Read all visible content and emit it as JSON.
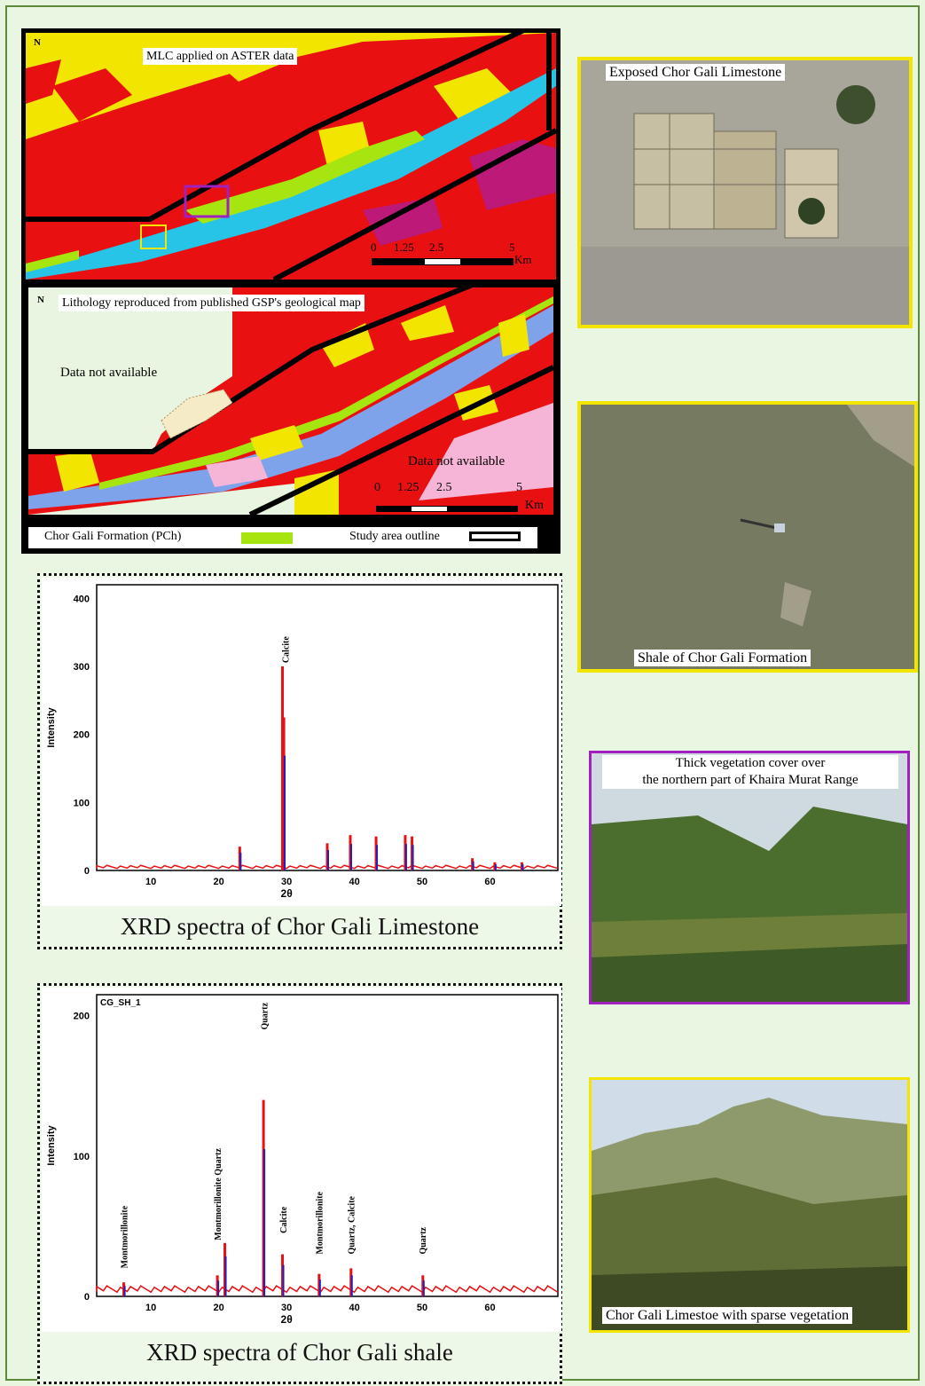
{
  "maps": {
    "top_title": "MLC applied on ASTER data",
    "bottom_title": "Lithology reproduced from published GSP's geological map",
    "north_label": "N",
    "na_left": "Data not available",
    "na_right": "Data not available",
    "scale_top": [
      "0",
      "1.25",
      "2.5",
      "5"
    ],
    "scale_bottom": [
      "0",
      "1.25",
      "2.5",
      "5"
    ],
    "scale_unit": "Km",
    "legend_formation": "Chor Gali Formation (PCh)",
    "legend_outline": "Study area outline"
  },
  "photos": {
    "p1": "Exposed Chor Gali Limestone",
    "p2": "Shale of Chor Gali Formation",
    "p3_line1": "Thick vegetation cover over",
    "p3_line2": "the northern part of Khaira Murat Range",
    "p4": "Chor Gali Limestoe with sparse vegetation"
  },
  "xrd1": {
    "caption": "XRD spectra of Chor Gali Limestone",
    "ylabel": "Intensity",
    "xlabel": "2θ",
    "yticks": [
      "0",
      "100",
      "200",
      "300",
      "400"
    ],
    "xticks": [
      "10",
      "20",
      "30",
      "40",
      "50",
      "60"
    ],
    "peak_label": "Calcite"
  },
  "xrd2": {
    "caption": "XRD spectra of Chor Gali shale",
    "ylabel": "Intensity",
    "xlabel": "2θ",
    "header": "CG_SH_1",
    "yticks": [
      "0",
      "100",
      "200"
    ],
    "xticks": [
      "10",
      "20",
      "30",
      "40",
      "50",
      "60"
    ],
    "labels": [
      "Montmorillonite",
      "Montmorillonite Quartz",
      "Quartz",
      "Calcite",
      "Montmorillonite",
      "Quartz, Calcite",
      "Quartz"
    ]
  },
  "chart_data": [
    {
      "type": "line",
      "xlabel": "2θ",
      "ylabel": "Intensity",
      "xlim": [
        2,
        70
      ],
      "ylim": [
        0,
        420
      ],
      "series": [
        {
          "x": [
            23.1,
            29.4,
            29.6,
            36.0,
            39.4,
            43.2,
            47.5,
            48.5,
            57.4,
            60.7,
            64.7
          ],
          "values": [
            35,
            300,
            225,
            40,
            52,
            50,
            52,
            50,
            18,
            12,
            12
          ]
        }
      ],
      "annotations": [
        "Calcite"
      ]
    },
    {
      "type": "line",
      "xlabel": "2θ",
      "ylabel": "Intensity",
      "xlim": [
        2,
        70
      ],
      "ylim": [
        0,
        215
      ],
      "series": [
        {
          "x": [
            6,
            19.8,
            20.9,
            26.6,
            29.4,
            34.8,
            39.5,
            50.1
          ],
          "values": [
            10,
            15,
            38,
            140,
            30,
            16,
            20,
            15
          ]
        }
      ],
      "annotations": [
        "Montmorillonite",
        "Montmorillonite Quartz",
        "Quartz",
        "Calcite",
        "Montmorillonite",
        "Quartz, Calcite",
        "Quartz"
      ]
    }
  ]
}
